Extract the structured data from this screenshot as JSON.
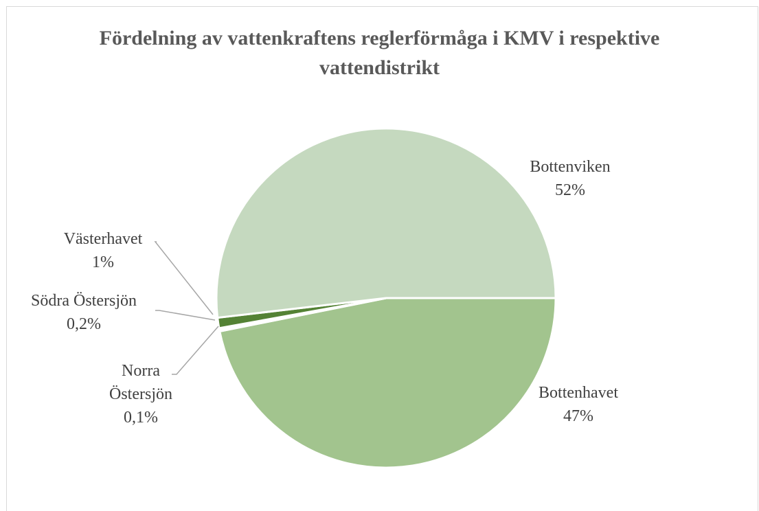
{
  "chart_data": {
    "type": "pie",
    "title": "Fördelning av vattenkraftens reglerförmåga i KMV i respektive vattendistrikt",
    "categories": [
      "Bottenhavet",
      "Norra Östersjön",
      "Södra Östersjön",
      "Västerhavet",
      "Bottenviken"
    ],
    "values": [
      47,
      0.1,
      0.2,
      1,
      52
    ],
    "value_labels": [
      "47%",
      "0,1%",
      "0,2%",
      "1%",
      "52%"
    ],
    "colors": [
      "#a2c48e",
      "#3b5e2a",
      "#70a050",
      "#548235",
      "#c5d9bf"
    ]
  }
}
